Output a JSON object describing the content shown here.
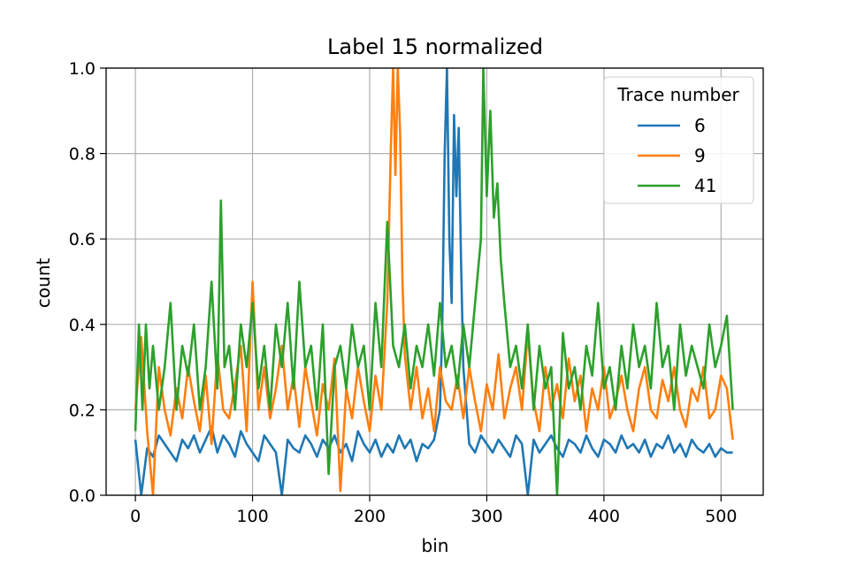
{
  "chart_data": {
    "type": "line",
    "title": "Label 15 normalized",
    "xlabel": "bin",
    "ylabel": "count",
    "xlim": [
      -25,
      536
    ],
    "ylim": [
      0,
      1.0
    ],
    "xticks": [
      0,
      100,
      200,
      300,
      400,
      500
    ],
    "yticks": [
      0.0,
      0.2,
      0.4,
      0.6,
      0.8,
      1.0
    ],
    "xtick_labels": [
      "0",
      "100",
      "200",
      "300",
      "400",
      "500"
    ],
    "ytick_labels": [
      "0.0",
      "0.2",
      "0.4",
      "0.6",
      "0.8",
      "1.0"
    ],
    "grid": true,
    "legend": {
      "title": "Trace number",
      "placement": "top-right"
    },
    "series": [
      {
        "name": "6",
        "color": "#1f77b4",
        "x": [
          0,
          5,
          10,
          15,
          20,
          25,
          30,
          35,
          40,
          45,
          50,
          55,
          60,
          65,
          70,
          75,
          80,
          85,
          90,
          95,
          100,
          105,
          110,
          115,
          120,
          125,
          130,
          135,
          140,
          145,
          150,
          155,
          160,
          165,
          170,
          175,
          180,
          185,
          190,
          195,
          200,
          205,
          210,
          215,
          220,
          225,
          230,
          235,
          240,
          245,
          250,
          255,
          260,
          262,
          264,
          266,
          268,
          270,
          272,
          274,
          276,
          278,
          280,
          285,
          290,
          295,
          300,
          305,
          310,
          315,
          320,
          325,
          330,
          335,
          340,
          345,
          350,
          355,
          360,
          365,
          370,
          375,
          380,
          385,
          390,
          395,
          400,
          405,
          410,
          415,
          420,
          425,
          430,
          435,
          440,
          445,
          450,
          455,
          460,
          465,
          470,
          475,
          480,
          485,
          490,
          495,
          500,
          505,
          510
        ],
        "y": [
          0.13,
          0.0,
          0.11,
          0.09,
          0.14,
          0.12,
          0.1,
          0.08,
          0.13,
          0.11,
          0.14,
          0.1,
          0.13,
          0.16,
          0.1,
          0.14,
          0.12,
          0.09,
          0.15,
          0.12,
          0.1,
          0.08,
          0.14,
          0.12,
          0.1,
          0.0,
          0.13,
          0.11,
          0.1,
          0.14,
          0.12,
          0.09,
          0.13,
          0.11,
          0.14,
          0.1,
          0.12,
          0.08,
          0.15,
          0.12,
          0.1,
          0.13,
          0.09,
          0.12,
          0.1,
          0.14,
          0.11,
          0.13,
          0.08,
          0.12,
          0.11,
          0.13,
          0.2,
          0.4,
          0.8,
          1.0,
          0.6,
          0.45,
          0.89,
          0.7,
          0.86,
          0.55,
          0.3,
          0.12,
          0.1,
          0.14,
          0.12,
          0.1,
          0.13,
          0.11,
          0.09,
          0.14,
          0.12,
          0.0,
          0.13,
          0.1,
          0.12,
          0.14,
          0.11,
          0.09,
          0.13,
          0.12,
          0.1,
          0.14,
          0.11,
          0.09,
          0.13,
          0.12,
          0.1,
          0.14,
          0.11,
          0.12,
          0.1,
          0.13,
          0.09,
          0.12,
          0.11,
          0.14,
          0.1,
          0.12,
          0.09,
          0.13,
          0.11,
          0.1,
          0.12,
          0.09,
          0.11,
          0.1,
          0.1
        ]
      },
      {
        "name": "9",
        "color": "#ff7f0e",
        "x": [
          0,
          5,
          10,
          15,
          20,
          25,
          30,
          35,
          40,
          45,
          50,
          55,
          60,
          65,
          70,
          75,
          80,
          85,
          90,
          95,
          100,
          105,
          110,
          115,
          120,
          125,
          130,
          135,
          140,
          145,
          150,
          155,
          160,
          165,
          170,
          175,
          180,
          185,
          190,
          195,
          200,
          205,
          210,
          215,
          218,
          220,
          222,
          224,
          226,
          228,
          230,
          235,
          240,
          245,
          250,
          255,
          260,
          265,
          270,
          275,
          280,
          285,
          290,
          295,
          300,
          305,
          310,
          315,
          320,
          325,
          330,
          335,
          340,
          345,
          350,
          355,
          360,
          365,
          370,
          375,
          380,
          385,
          390,
          395,
          400,
          405,
          410,
          415,
          420,
          425,
          430,
          435,
          440,
          445,
          450,
          455,
          460,
          465,
          470,
          475,
          480,
          485,
          490,
          495,
          500,
          505,
          510
        ],
        "y": [
          0.2,
          0.37,
          0.15,
          0.0,
          0.3,
          0.2,
          0.14,
          0.25,
          0.18,
          0.3,
          0.22,
          0.15,
          0.28,
          0.12,
          0.33,
          0.2,
          0.18,
          0.26,
          0.35,
          0.15,
          0.5,
          0.2,
          0.3,
          0.18,
          0.25,
          0.35,
          0.2,
          0.28,
          0.16,
          0.3,
          0.22,
          0.14,
          0.26,
          0.2,
          0.32,
          0.01,
          0.25,
          0.18,
          0.3,
          0.22,
          0.15,
          0.28,
          0.2,
          0.45,
          0.8,
          1.0,
          0.75,
          1.0,
          0.85,
          0.5,
          0.33,
          0.2,
          0.3,
          0.18,
          0.25,
          0.15,
          0.3,
          0.22,
          0.2,
          0.28,
          0.18,
          0.3,
          0.22,
          0.15,
          0.26,
          0.2,
          0.33,
          0.18,
          0.25,
          0.3,
          0.2,
          0.38,
          0.22,
          0.15,
          0.3,
          0.2,
          0.26,
          0.18,
          0.32,
          0.22,
          0.28,
          0.15,
          0.25,
          0.2,
          0.3,
          0.18,
          0.22,
          0.28,
          0.2,
          0.15,
          0.25,
          0.3,
          0.2,
          0.18,
          0.27,
          0.22,
          0.3,
          0.2,
          0.16,
          0.25,
          0.22,
          0.3,
          0.18,
          0.2,
          0.28,
          0.25,
          0.13
        ]
      },
      {
        "name": "41",
        "color": "#2ca02c",
        "x": [
          0,
          3,
          6,
          9,
          12,
          15,
          20,
          25,
          30,
          35,
          40,
          45,
          50,
          55,
          60,
          65,
          70,
          73,
          76,
          80,
          85,
          90,
          95,
          100,
          105,
          110,
          115,
          120,
          125,
          130,
          135,
          140,
          145,
          150,
          155,
          160,
          165,
          170,
          175,
          180,
          185,
          190,
          195,
          200,
          205,
          210,
          215,
          220,
          225,
          230,
          235,
          240,
          245,
          250,
          255,
          260,
          265,
          270,
          275,
          280,
          285,
          290,
          295,
          297,
          300,
          303,
          306,
          309,
          312,
          315,
          320,
          325,
          330,
          335,
          340,
          345,
          350,
          355,
          360,
          365,
          370,
          375,
          380,
          385,
          390,
          395,
          400,
          405,
          410,
          415,
          420,
          425,
          430,
          435,
          440,
          445,
          450,
          455,
          460,
          465,
          470,
          475,
          480,
          485,
          490,
          495,
          500,
          505,
          510
        ],
        "y": [
          0.15,
          0.4,
          0.2,
          0.4,
          0.25,
          0.35,
          0.2,
          0.3,
          0.45,
          0.2,
          0.35,
          0.28,
          0.4,
          0.2,
          0.3,
          0.5,
          0.25,
          0.69,
          0.3,
          0.35,
          0.2,
          0.4,
          0.3,
          0.45,
          0.25,
          0.35,
          0.2,
          0.4,
          0.3,
          0.45,
          0.25,
          0.5,
          0.3,
          0.35,
          0.2,
          0.4,
          0.05,
          0.3,
          0.35,
          0.25,
          0.4,
          0.3,
          0.35,
          0.2,
          0.45,
          0.3,
          0.64,
          0.35,
          0.3,
          0.4,
          0.25,
          0.35,
          0.3,
          0.4,
          0.28,
          0.45,
          0.3,
          0.35,
          0.25,
          0.4,
          0.3,
          0.45,
          0.6,
          1.0,
          0.7,
          0.9,
          0.65,
          0.73,
          0.55,
          0.45,
          0.3,
          0.35,
          0.25,
          0.4,
          0.2,
          0.35,
          0.25,
          0.3,
          0.0,
          0.38,
          0.25,
          0.3,
          0.2,
          0.35,
          0.28,
          0.45,
          0.25,
          0.3,
          0.2,
          0.35,
          0.25,
          0.4,
          0.3,
          0.35,
          0.25,
          0.45,
          0.3,
          0.35,
          0.2,
          0.4,
          0.28,
          0.35,
          0.3,
          0.25,
          0.4,
          0.3,
          0.35,
          0.42,
          0.2
        ]
      }
    ]
  }
}
